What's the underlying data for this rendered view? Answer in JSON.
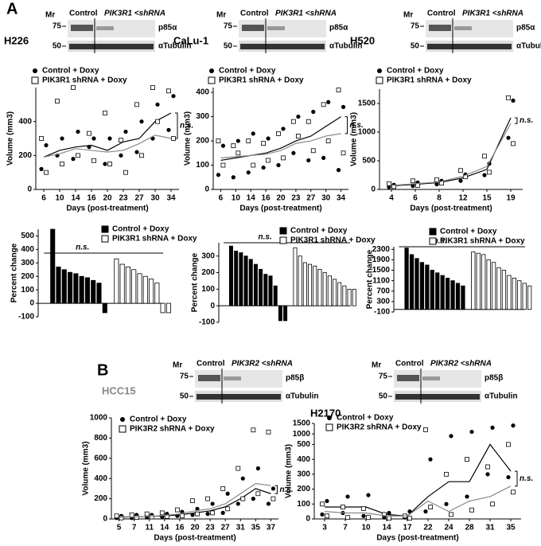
{
  "panel_labels": [
    "A",
    "B"
  ],
  "blots": [
    {
      "cell_line": "H226",
      "mr": "Mr",
      "markers": [
        "75",
        "50"
      ],
      "lanes": [
        "Control",
        "PIK3R1 <shRNA"
      ],
      "proteins": [
        "p85α",
        "αTubulin"
      ]
    },
    {
      "cell_line": "CaLu-1",
      "mr": "Mr",
      "markers": [
        "75",
        "50"
      ],
      "lanes": [
        "Control",
        "PIK3R1 <shRNA"
      ],
      "proteins": [
        "p85α",
        "αTubulin"
      ]
    },
    {
      "cell_line": "H520",
      "mr": "Mr",
      "markers": [
        "75",
        "50"
      ],
      "lanes": [
        "Control",
        "PIK3R1 <shRNA"
      ],
      "proteins": [
        "p85α",
        "αTubulin"
      ]
    },
    {
      "cell_line": "HCC15",
      "mr": "Mr",
      "markers": [
        "75",
        "50"
      ],
      "lanes": [
        "Control",
        "PIK3R2 <shRNA"
      ],
      "proteins": [
        "p85β",
        "αTubulin"
      ]
    },
    {
      "cell_line": "H2170",
      "mr": "Mr",
      "markers": [
        "75",
        "50"
      ],
      "lanes": [
        "Control",
        "PIK3R2 <shRNA"
      ],
      "proteins": [
        "p85β",
        "αTubulin"
      ]
    }
  ],
  "chart_data": [
    {
      "type": "line",
      "xlabel": "Days (post-treatment)",
      "ylabel": "Volume (mm3)",
      "annotation": "n.s.",
      "categories": [
        "6",
        "10",
        "14",
        "16",
        "20",
        "23",
        "27",
        "30",
        "34"
      ],
      "ylim": [
        0,
        600
      ],
      "yticks": [
        0,
        200,
        400
      ],
      "series": [
        {
          "name": "Control + Doxy",
          "color": "#000000",
          "values": [
            190,
            230,
            250,
            260,
            230,
            280,
            300,
            400,
            450
          ],
          "points": [
            [
              120,
              260
            ],
            [
              200,
              300
            ],
            [
              180,
              340
            ],
            [
              250,
              300
            ],
            [
              150,
              300
            ],
            [
              200,
              340
            ],
            [
              220,
              400
            ],
            [
              300,
              500
            ],
            [
              350,
              550
            ]
          ]
        },
        {
          "name": "PIK3R1 shRNA + Doxy",
          "color": "#888888",
          "values": [
            190,
            210,
            240,
            230,
            220,
            230,
            270,
            320,
            300
          ],
          "points": [
            [
              100,
              300
            ],
            [
              150,
              520
            ],
            [
              200,
              600
            ],
            [
              170,
              330
            ],
            [
              150,
              450
            ],
            [
              100,
              290
            ],
            [
              200,
              500
            ],
            [
              400,
              600
            ],
            [
              300,
              580
            ]
          ]
        }
      ]
    },
    {
      "type": "line",
      "xlabel": "Days (post-treatment)",
      "ylabel": "Volume (mm3)",
      "annotation": "n.s.",
      "categories": [
        "6",
        "10",
        "14",
        "16",
        "20",
        "23",
        "27",
        "30",
        "34"
      ],
      "ylim": [
        0,
        420
      ],
      "yticks": [
        0,
        100,
        200,
        300,
        400
      ],
      "series": [
        {
          "name": "Control + Doxy",
          "color": "#000000",
          "values": [
            120,
            130,
            140,
            150,
            170,
            200,
            220,
            260,
            300
          ],
          "points": [
            [
              60,
              180
            ],
            [
              50,
              200
            ],
            [
              70,
              230
            ],
            [
              90,
              210
            ],
            [
              100,
              250
            ],
            [
              150,
              300
            ],
            [
              120,
              320
            ],
            [
              130,
              360
            ],
            [
              80,
              340
            ]
          ]
        },
        {
          "name": "PIK3R1 shRNA + Doxy",
          "color": "#888888",
          "values": [
            130,
            135,
            140,
            145,
            160,
            190,
            200,
            220,
            230
          ],
          "points": [
            [
              100,
              200
            ],
            [
              150,
              180
            ],
            [
              100,
              200
            ],
            [
              120,
              190
            ],
            [
              130,
              230
            ],
            [
              220,
              280
            ],
            [
              160,
              280
            ],
            [
              200,
              350
            ],
            [
              150,
              410
            ]
          ]
        }
      ]
    },
    {
      "type": "line",
      "xlabel": "Days (post-treatment)",
      "ylabel": "Volume (mm3)",
      "annotation": "n.s.",
      "categories": [
        "4",
        "6",
        "8",
        "12",
        "15",
        "19"
      ],
      "ylim": [
        0,
        1750
      ],
      "yticks": [
        0,
        500,
        1000,
        1500
      ],
      "series": [
        {
          "name": "Control + Doxy",
          "color": "#000000",
          "values": [
            60,
            90,
            120,
            200,
            350,
            1250
          ],
          "points": [
            [
              40,
              80
            ],
            [
              60,
              120
            ],
            [
              90,
              150
            ],
            [
              150,
              260
            ],
            [
              250,
              450
            ],
            [
              900,
              1550
            ]
          ]
        },
        {
          "name": "PIK3R1 shRNA + Doxy",
          "color": "#888888",
          "values": [
            70,
            100,
            130,
            230,
            400,
            1150
          ],
          "points": [
            [
              50,
              100
            ],
            [
              70,
              150
            ],
            [
              110,
              170
            ],
            [
              220,
              330
            ],
            [
              300,
              580
            ],
            [
              800,
              1600
            ]
          ]
        }
      ]
    },
    {
      "type": "waterfall",
      "ylabel": "Percent change",
      "annotation": "n.s.",
      "ylim": [
        -100,
        550
      ],
      "yticks": [
        -100,
        0,
        100,
        200,
        300,
        400,
        500
      ],
      "series": [
        {
          "name": "Control + Doxy",
          "color": "#000000",
          "values": [
            550,
            270,
            250,
            230,
            220,
            200,
            190,
            170,
            150,
            -70
          ]
        },
        {
          "name": "PIK3R1 shRNA + Doxy",
          "color": "#ffffff",
          "values": [
            330,
            290,
            270,
            250,
            220,
            200,
            180,
            150,
            -70,
            -70
          ]
        }
      ]
    },
    {
      "type": "waterfall",
      "ylabel": "Percent change",
      "annotation": "n.s.",
      "ylim": [
        -100,
        380
      ],
      "yticks": [
        -100,
        0,
        100,
        200,
        300
      ],
      "series": [
        {
          "name": "Control + Doxy",
          "color": "#000000",
          "values": [
            360,
            330,
            320,
            300,
            280,
            250,
            220,
            190,
            180,
            120,
            -90,
            -90
          ]
        },
        {
          "name": "PIK3R1 shRNA + Doxy",
          "color": "#ffffff",
          "values": [
            350,
            300,
            260,
            250,
            240,
            220,
            200,
            180,
            160,
            140,
            120,
            100,
            100
          ]
        }
      ]
    },
    {
      "type": "waterfall",
      "ylabel": "Percent change",
      "annotation": "n.s.",
      "ylim": [
        -100,
        2400
      ],
      "yticks": [
        -100,
        300,
        700,
        1100,
        1500,
        1900,
        2300
      ],
      "series": [
        {
          "name": "Control + Doxy",
          "color": "#000000",
          "values": [
            2350,
            2100,
            1950,
            1800,
            1700,
            1500,
            1400,
            1300,
            1200,
            1100,
            1000,
            900
          ]
        },
        {
          "name": "PIK3R1 shRNA + Doxy",
          "color": "#ffffff",
          "values": [
            2200,
            2150,
            2100,
            1900,
            1800,
            1600,
            1500,
            1300,
            1200,
            1100,
            1000,
            900
          ]
        }
      ]
    },
    {
      "type": "line",
      "xlabel": "Days (post-treatment)",
      "ylabel": "Volume (mm3)",
      "annotation": "n.s.",
      "categories": [
        "5",
        "7",
        "11",
        "14",
        "16",
        "20",
        "23",
        "27",
        "31",
        "35",
        "37"
      ],
      "ylim": [
        0,
        1000
      ],
      "yticks": [
        0,
        200,
        400,
        600,
        800,
        1000
      ],
      "series": [
        {
          "name": "Control + Doxy",
          "color": "#000000",
          "values": [
            20,
            20,
            25,
            30,
            40,
            60,
            80,
            120,
            200,
            300,
            250
          ],
          "points": [
            [
              10,
              30
            ],
            [
              10,
              40
            ],
            [
              15,
              40
            ],
            [
              20,
              50
            ],
            [
              30,
              70
            ],
            [
              40,
              100
            ],
            [
              50,
              150
            ],
            [
              60,
              250
            ],
            [
              150,
              400
            ],
            [
              200,
              500
            ],
            [
              150,
              300
            ]
          ]
        },
        {
          "name": "PIK3R2 shRNA + Doxy",
          "color": "#888888",
          "values": [
            15,
            20,
            25,
            35,
            50,
            80,
            100,
            150,
            250,
            350,
            330
          ],
          "points": [
            [
              10,
              30
            ],
            [
              15,
              40
            ],
            [
              20,
              50
            ],
            [
              25,
              60
            ],
            [
              30,
              90
            ],
            [
              50,
              180
            ],
            [
              60,
              200
            ],
            [
              100,
              300
            ],
            [
              200,
              500
            ],
            [
              250,
              880
            ],
            [
              200,
              860
            ]
          ]
        }
      ]
    },
    {
      "type": "line",
      "xlabel": "Days (post-treatment)",
      "ylabel": "Volume (mm3)",
      "annotation": "n.s.",
      "categories": [
        "3",
        "7",
        "10",
        "14",
        "17",
        "22",
        "24",
        "28",
        "31",
        "35"
      ],
      "ylim": [
        0,
        1500
      ],
      "axis_break": 500,
      "yticks": [
        0,
        100,
        200,
        300,
        400,
        500,
        1000,
        1500
      ],
      "series": [
        {
          "name": "Control + Doxy",
          "color": "#000000",
          "values": [
            80,
            80,
            80,
            30,
            20,
            150,
            250,
            250,
            500,
            320
          ],
          "points": [
            [
              30,
              120
            ],
            [
              40,
              150
            ],
            [
              20,
              160
            ],
            [
              10,
              40
            ],
            [
              10,
              50
            ],
            [
              50,
              400
            ],
            [
              100,
              900
            ],
            [
              150,
              1100
            ],
            [
              300,
              1300
            ],
            [
              280,
              1400
            ]
          ]
        },
        {
          "name": "PIK3R2 shRNA + Doxy",
          "color": "#888888",
          "values": [
            50,
            40,
            40,
            20,
            20,
            120,
            50,
            120,
            150,
            220
          ],
          "points": [
            [
              20,
              100
            ],
            [
              10,
              80
            ],
            [
              10,
              70
            ],
            [
              5,
              30
            ],
            [
              5,
              20
            ],
            [
              80,
              1200
            ],
            [
              30,
              300
            ],
            [
              60,
              400
            ],
            [
              100,
              350
            ],
            [
              180,
              500
            ]
          ]
        }
      ]
    }
  ]
}
